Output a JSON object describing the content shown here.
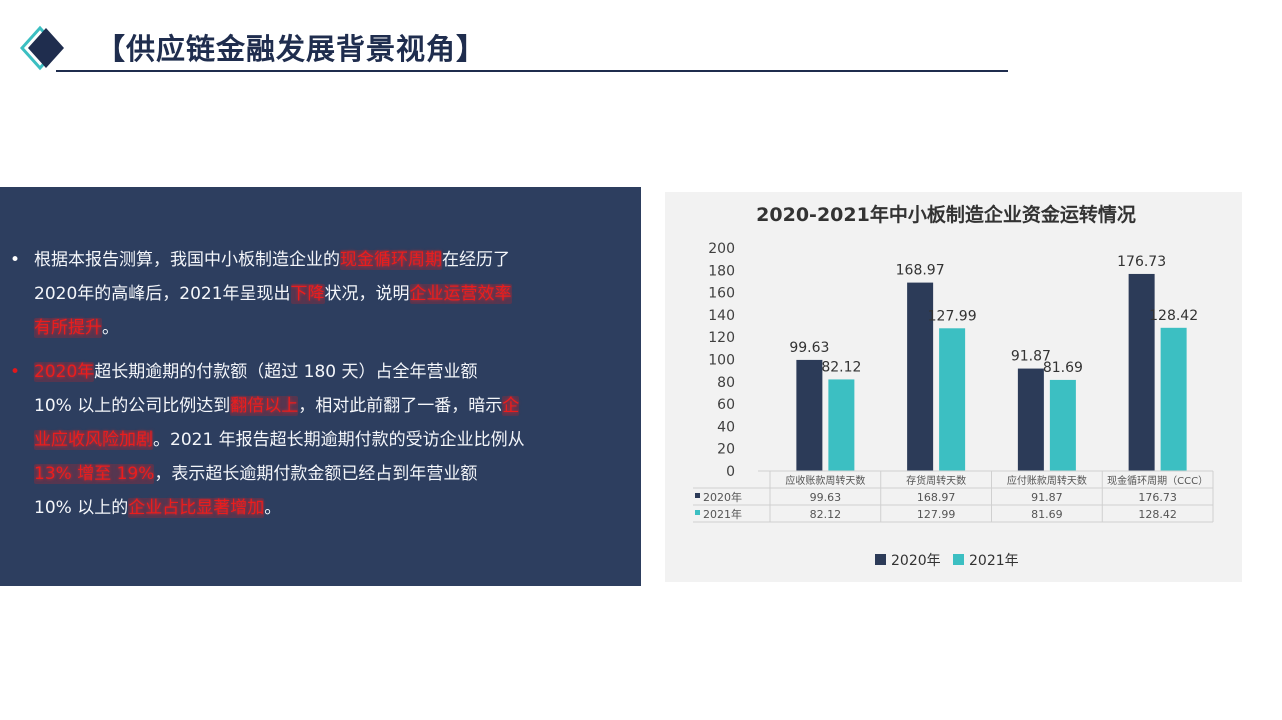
{
  "slide": {
    "title": "【供应链金融发展背景视角】"
  },
  "colors": {
    "navy": "#1f2d4e",
    "panel": "#2d3e5f",
    "series_2020": "#2c3b58",
    "series_2021": "#3cbfc2",
    "highlight_red": "#ea1d1d"
  },
  "left_panel": {
    "bullets": [
      {
        "lines": [
          [
            "根据本报告测算，我国中小板制造企业的",
            {
              "hl": "现金循环周期"
            },
            "在经历了"
          ],
          [
            "2020年的高峰后，2021年呈现出",
            {
              "hl": "下降"
            },
            "状况，说明",
            {
              "hl": "企业运营效率"
            }
          ],
          [
            {
              "hl": "有所提升"
            },
            "。"
          ]
        ]
      },
      {
        "lines": [
          [
            {
              "hl": "2020年"
            },
            "超长期逾期的付款额（超过 180 天）占全年营业额"
          ],
          [
            "10% 以上的公司比例达到",
            {
              "hl": "翻倍以上"
            },
            "，相对此前翻了一番，暗示",
            {
              "hl": "企"
            }
          ],
          [
            {
              "hl": "业应收风险加剧"
            },
            "。2021 年报告超长期逾期付款的受访企业比例从"
          ],
          [
            {
              "hl": "13% 增至 19%"
            },
            "，表示超长逾期付款金额已经占到年营业额"
          ],
          [
            "10% 以上的",
            {
              "hl": "企业占比显著增加"
            },
            "。"
          ]
        ]
      }
    ]
  },
  "chart_data": {
    "type": "bar",
    "title": "2020-2021年中小板制造企业资金运转情况",
    "categories": [
      "应收账款周转天数",
      "存货周转天数",
      "应付账款周转天数",
      "现金循环周期（CCC）"
    ],
    "series": [
      {
        "name": "2020年",
        "values": [
          99.63,
          168.97,
          91.87,
          176.73
        ],
        "value_labels": [
          "99.63",
          "168.97",
          "91.87",
          "176.73"
        ],
        "color": "#2c3b58"
      },
      {
        "name": "2021年",
        "values": [
          82.12,
          127.99,
          81.69,
          128.42
        ],
        "value_labels": [
          "82.12",
          "127.99",
          "81.69",
          "128.42"
        ],
        "color": "#3cbfc2"
      }
    ],
    "ylim": [
      0,
      200
    ],
    "yticks": [
      "0",
      "20",
      "40",
      "60",
      "80",
      "100",
      "120",
      "140",
      "160",
      "180",
      "200"
    ],
    "ytick_values": [
      0,
      20,
      40,
      60,
      80,
      100,
      120,
      140,
      160,
      180,
      200
    ],
    "data_table": true,
    "legend_position": "bottom",
    "grid": false
  }
}
